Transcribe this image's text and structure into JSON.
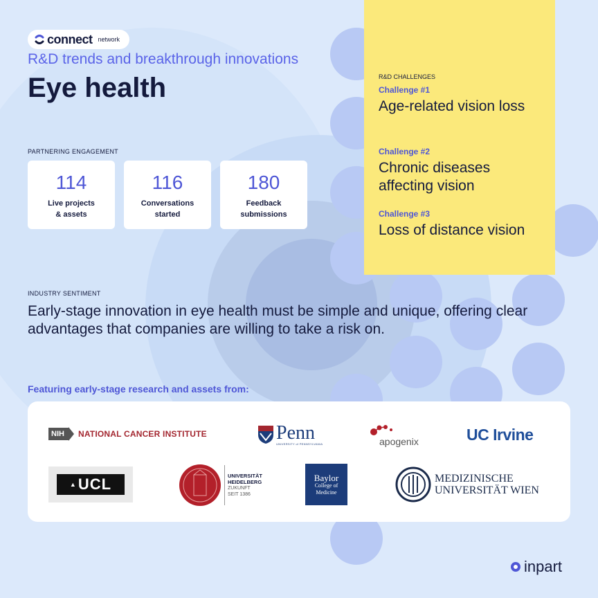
{
  "brand": {
    "name": "connect",
    "sub": "network"
  },
  "subtitle": "R&D trends and breakthrough innovations",
  "title": "Eye health",
  "engagement": {
    "label": "PARTNERING ENGAGEMENT",
    "stats": [
      {
        "value": "114",
        "label": "Live projects\n& assets"
      },
      {
        "value": "116",
        "label": "Conversations\nstarted"
      },
      {
        "value": "180",
        "label": "Feedback\nsubmissions"
      }
    ]
  },
  "challenges": {
    "heading": "R&D CHALLENGES",
    "items": [
      {
        "label": "Challenge #1",
        "text": "Age-related vision loss"
      },
      {
        "label": "Challenge #2",
        "text": "Chronic diseases affecting vision"
      },
      {
        "label": "Challenge #3",
        "text": "Loss of distance vision"
      }
    ]
  },
  "sentiment": {
    "label": "INDUSTRY SENTIMENT",
    "text": "Early-stage innovation in eye health must be simple and unique, offering clear advantages that companies are willing to take a risk on."
  },
  "featuring": "Featuring early-stage research and assets from:",
  "logos": {
    "nih_badge": "NIH",
    "nih_text": "NATIONAL CANCER INSTITUTE",
    "penn": "Penn",
    "penn_sub": "UNIVERSITY of PENNSYLVANIA",
    "apogenix": "apogenix",
    "ucirvine": "UC Irvine",
    "ucl": "UCL",
    "heidelberg": [
      "UNIVERSITÄT",
      "HEIDELBERG",
      "ZUKUNFT",
      "SEIT 1386"
    ],
    "baylor": [
      "Baylor",
      "College of",
      "Medicine"
    ],
    "wien": [
      "MEDIZINISCHE",
      "UNIVERSITÄT WIEN"
    ]
  },
  "footer_brand": "inpart",
  "colors": {
    "accent": "#4e56d6",
    "panel": "#fbe97b",
    "background": "#dce9fb",
    "navy": "#141a3d"
  }
}
